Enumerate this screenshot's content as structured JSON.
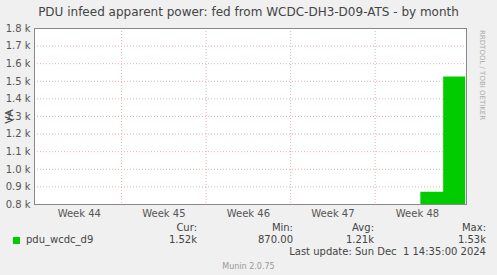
{
  "chart_data": {
    "type": "area",
    "title": "PDU infeed apparent power: fed from WCDC-DH3-D09-ATS - by month",
    "ylabel": "VA",
    "x": [
      48.54,
      48.81,
      49.07
    ],
    "series": [
      {
        "name": "pdu_wcdc_d9",
        "color": "#00cc00",
        "values": [
          870,
          1525,
          1525
        ]
      }
    ],
    "xlim": [
      43.97,
      49.08
    ],
    "xticks": [
      {
        "value": 44.5,
        "label": "Week 44"
      },
      {
        "value": 45.5,
        "label": "Week 45"
      },
      {
        "value": 46.5,
        "label": "Week 46"
      },
      {
        "value": 47.5,
        "label": "Week 47"
      },
      {
        "value": 48.5,
        "label": "Week 48"
      }
    ],
    "ylim": [
      800,
      1800
    ],
    "yticks": [
      {
        "value": 800,
        "label": "0.8 k"
      },
      {
        "value": 900,
        "label": "0.9 k"
      },
      {
        "value": 1000,
        "label": "1.0 k"
      },
      {
        "value": 1100,
        "label": "1.1 k"
      },
      {
        "value": 1200,
        "label": "1.2 k"
      },
      {
        "value": 1300,
        "label": "1.3 k"
      },
      {
        "value": 1400,
        "label": "1.4 k"
      },
      {
        "value": 1500,
        "label": "1.5 k"
      },
      {
        "value": 1600,
        "label": "1.6 k"
      },
      {
        "value": 1700,
        "label": "1.7 k"
      },
      {
        "value": 1800,
        "label": "1.8 k"
      }
    ],
    "grid": true,
    "stats": [
      {
        "name": "Cur:",
        "value": 1520,
        "label": "1.52k"
      },
      {
        "name": "Min:",
        "value": 870,
        "label": "870.00"
      },
      {
        "name": "Avg:",
        "value": 1210,
        "label": "1.21k"
      },
      {
        "name": "Max:",
        "value": 1530,
        "label": "1.53k"
      }
    ],
    "last_update": "Last update: Sun Dec  1 14:35:00 2024",
    "generator": "Munin 2.0.75",
    "watermark": "RRDTOOL / TOBI OETIKER"
  }
}
